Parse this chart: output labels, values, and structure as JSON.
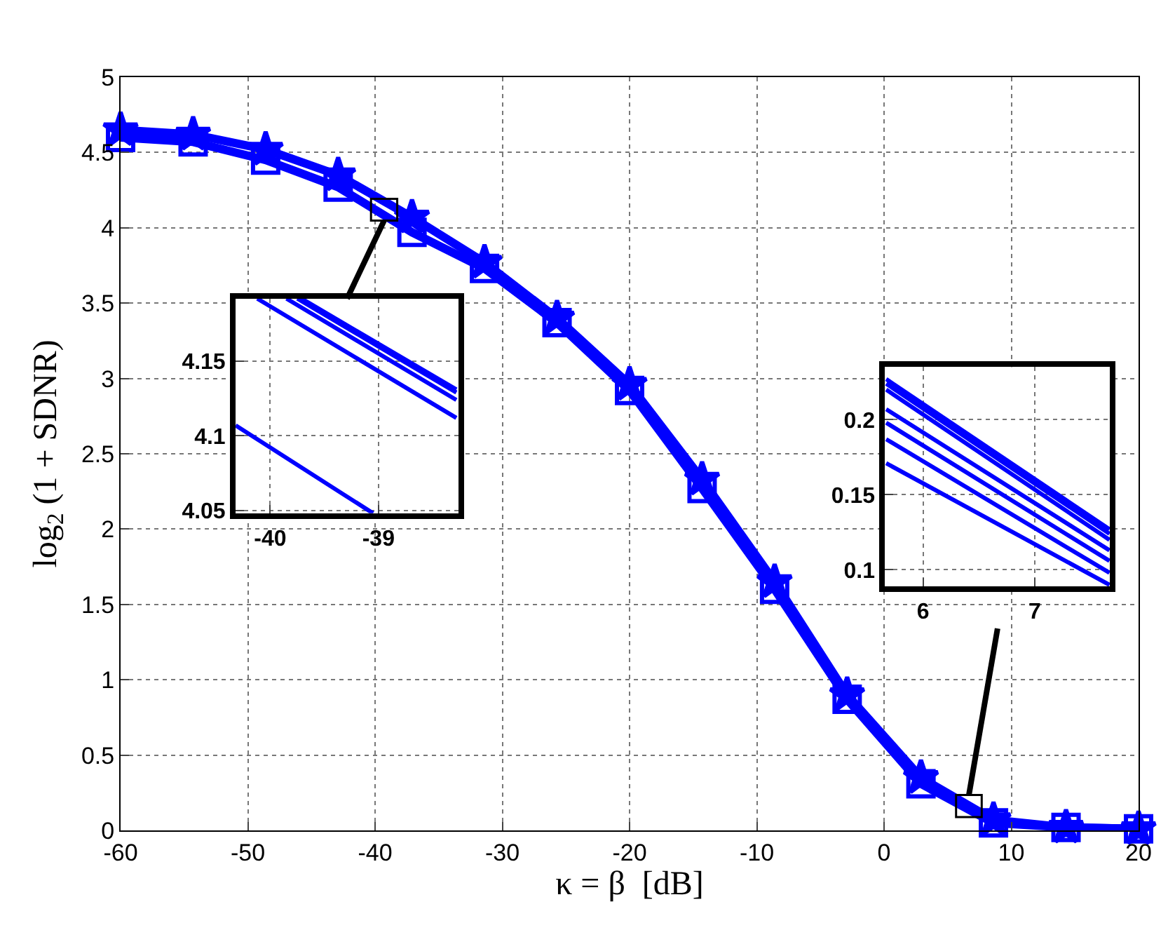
{
  "chart_data": [
    {
      "type": "line",
      "xlabel": "κ = β  [dB]",
      "ylabel": "log$_{2}$ (1 + SDNR)",
      "x": [
        -60,
        -54.3,
        -48.6,
        -42.9,
        -37.1,
        -31.4,
        -25.7,
        -20,
        -14.3,
        -8.6,
        -2.9,
        2.9,
        8.6,
        14.3,
        20
      ],
      "series": [
        {
          "color": "#0000ff",
          "marker": "square",
          "values": [
            4.6,
            4.57,
            4.45,
            4.27,
            3.97,
            3.73,
            3.37,
            2.92,
            2.27,
            1.6,
            0.87,
            0.31,
            0.05,
            0.02,
            0.01
          ]
        },
        {
          "color": "#0000ff",
          "marker": "star",
          "values": [
            4.65,
            4.62,
            4.52,
            4.35,
            4.07,
            3.77,
            3.4,
            2.96,
            2.33,
            1.65,
            0.9,
            0.35,
            0.07,
            0.02,
            0.01
          ]
        }
      ],
      "xlim": [
        -60,
        20
      ],
      "xticks": [
        -60,
        -50,
        -40,
        -30,
        -20,
        -10,
        0,
        10,
        20
      ],
      "ylim": [
        0,
        5
      ],
      "yticks": [
        0,
        0.5,
        1,
        1.5,
        2,
        2.5,
        3,
        3.5,
        4,
        4.5,
        5
      ],
      "grid": true,
      "line_style": "solid"
    },
    {
      "type": "line",
      "xlim": [
        -40.32,
        -38.26
      ],
      "xticks": [
        -40,
        -39
      ],
      "ylim": [
        4.048,
        4.192
      ],
      "yticks": [
        4.05,
        4.1,
        4.15
      ],
      "grid": true,
      "line_style": "solid",
      "marker": "none",
      "series": [
        {
          "color": "#0000ff",
          "x": [
            -40.32,
            -39.05
          ],
          "values": [
            4.107,
            4.048
          ]
        },
        {
          "color": "#0000ff",
          "x": [
            -40.12,
            -38.28
          ],
          "values": [
            4.192,
            4.112
          ]
        },
        {
          "color": "#0000ff",
          "x": [
            -39.85,
            -38.28
          ],
          "values": [
            4.192,
            4.124
          ]
        },
        {
          "color": "#0000ff",
          "x": [
            -39.75,
            -38.28
          ],
          "values": [
            4.192,
            4.129
          ]
        },
        {
          "color": "#0000ff",
          "x": [
            -39.71,
            -38.28
          ],
          "values": [
            4.192,
            4.131
          ]
        }
      ]
    },
    {
      "type": "line",
      "xlim": [
        5.66,
        7.675
      ],
      "xticks": [
        6,
        7
      ],
      "ylim": [
        0.089,
        0.235
      ],
      "yticks": [
        0.1,
        0.15,
        0.2
      ],
      "grid": true,
      "line_style": "solid",
      "marker": "none",
      "series": [
        {
          "color": "#0000ff",
          "x": [
            5.67,
            7.67
          ],
          "values": [
            0.227,
            0.127
          ]
        },
        {
          "color": "#0000ff",
          "x": [
            5.67,
            7.67
          ],
          "values": [
            0.224,
            0.124
          ]
        },
        {
          "color": "#0000ff",
          "x": [
            5.67,
            7.67
          ],
          "values": [
            0.22,
            0.12
          ]
        },
        {
          "color": "#0000ff",
          "x": [
            5.67,
            7.67
          ],
          "values": [
            0.207,
            0.113
          ]
        },
        {
          "color": "#0000ff",
          "x": [
            5.67,
            7.67
          ],
          "values": [
            0.198,
            0.106
          ]
        },
        {
          "color": "#0000ff",
          "x": [
            5.67,
            7.67
          ],
          "values": [
            0.187,
            0.098
          ]
        },
        {
          "color": "#0000ff",
          "x": [
            5.67,
            7.67
          ],
          "values": [
            0.171,
            0.09
          ]
        }
      ]
    }
  ]
}
